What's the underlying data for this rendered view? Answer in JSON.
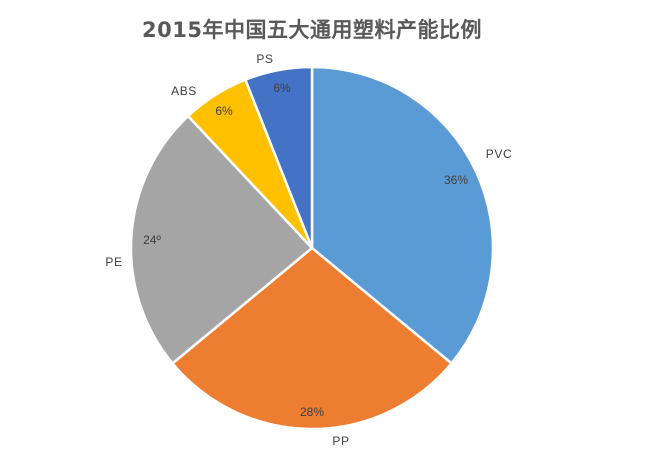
{
  "chart_data": {
    "type": "pie",
    "title": "2015年中国五大通用塑料产能比例",
    "categories": [
      "PVC",
      "PP",
      "PE",
      "ABS",
      "PS"
    ],
    "values": [
      36,
      28,
      24,
      6,
      6
    ],
    "value_labels": [
      "36%",
      "28%",
      "24º",
      "6%",
      "6%"
    ],
    "colors": [
      "#5B9BD5",
      "#ED7D31",
      "#A5A5A5",
      "#FFC000",
      "#4472C4"
    ],
    "start_angle_deg": 0,
    "direction": "clockwise",
    "legend": "none",
    "data_labels": "category outside, value inside",
    "xlabel": "",
    "ylabel": ""
  },
  "title": "2015年中国五大通用塑料产能比例",
  "slices": [
    {
      "category": "PVC",
      "value": 36,
      "label": "36%",
      "color": "#5B9BD5"
    },
    {
      "category": "PP",
      "value": 28,
      "label": "28%",
      "color": "#ED7D31"
    },
    {
      "category": "PE",
      "value": 24,
      "label": "24º",
      "color": "#A5A5A5"
    },
    {
      "category": "ABS",
      "value": 6,
      "label": "6%",
      "color": "#FFC000"
    },
    {
      "category": "PS",
      "value": 6,
      "label": "6%",
      "color": "#4472C4"
    }
  ]
}
